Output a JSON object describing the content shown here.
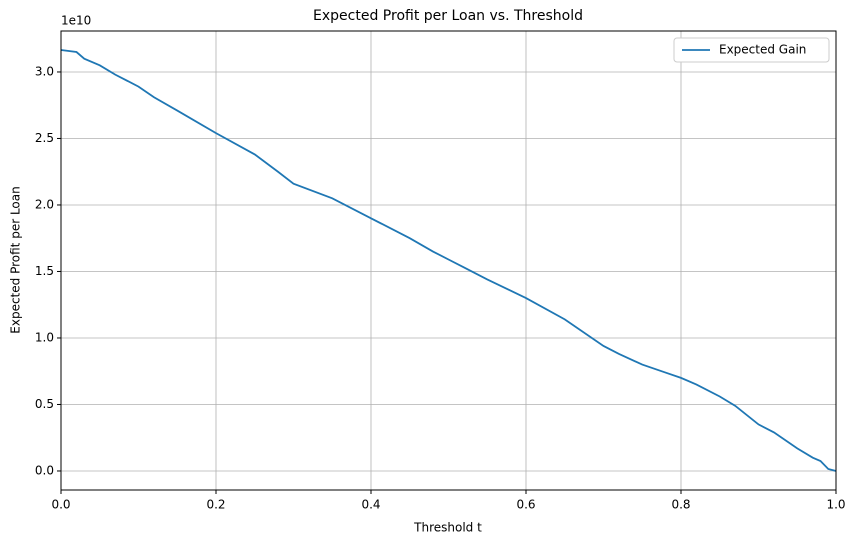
{
  "chart_data": {
    "type": "line",
    "title": "Expected Profit per Loan vs. Threshold",
    "xlabel": "Threshold t",
    "ylabel": "Expected Profit per Loan",
    "y_offset_label": "1e10",
    "x": [
      0,
      0.02,
      0.03,
      0.05,
      0.07,
      0.1,
      0.12,
      0.15,
      0.2,
      0.25,
      0.28,
      0.3,
      0.35,
      0.4,
      0.45,
      0.48,
      0.5,
      0.52,
      0.55,
      0.6,
      0.65,
      0.7,
      0.72,
      0.75,
      0.78,
      0.8,
      0.82,
      0.85,
      0.87,
      0.9,
      0.92,
      0.95,
      0.97,
      0.98,
      0.99,
      1.0
    ],
    "series": [
      {
        "name": "Expected Gain",
        "color": "#1f77b4",
        "values": [
          3.165,
          3.15,
          3.1,
          3.05,
          2.98,
          2.89,
          2.81,
          2.71,
          2.54,
          2.38,
          2.25,
          2.16,
          2.05,
          1.9,
          1.75,
          1.65,
          1.59,
          1.53,
          1.44,
          1.3,
          1.14,
          0.94,
          0.88,
          0.8,
          0.74,
          0.7,
          0.65,
          0.56,
          0.49,
          0.35,
          0.29,
          0.17,
          0.1,
          0.075,
          0.015,
          0.0
        ]
      }
    ],
    "xlim": [
      0,
      1
    ],
    "ylim": [
      -0.143,
      3.308
    ],
    "xticks": [
      {
        "value": 0,
        "label": "0.0"
      },
      {
        "value": 0.2,
        "label": "0.2"
      },
      {
        "value": 0.4,
        "label": "0.4"
      },
      {
        "value": 0.6,
        "label": "0.6"
      },
      {
        "value": 0.8,
        "label": "0.8"
      },
      {
        "value": 1,
        "label": "1.0"
      }
    ],
    "yticks": [
      {
        "value": 0,
        "label": "0.0"
      },
      {
        "value": 0.5,
        "label": "0.5"
      },
      {
        "value": 1,
        "label": "1.0"
      },
      {
        "value": 1.5,
        "label": "1.5"
      },
      {
        "value": 2,
        "label": "2.0"
      },
      {
        "value": 2.5,
        "label": "2.5"
      },
      {
        "value": 3,
        "label": "3.0"
      }
    ],
    "grid": true,
    "legend": "upper-right"
  }
}
